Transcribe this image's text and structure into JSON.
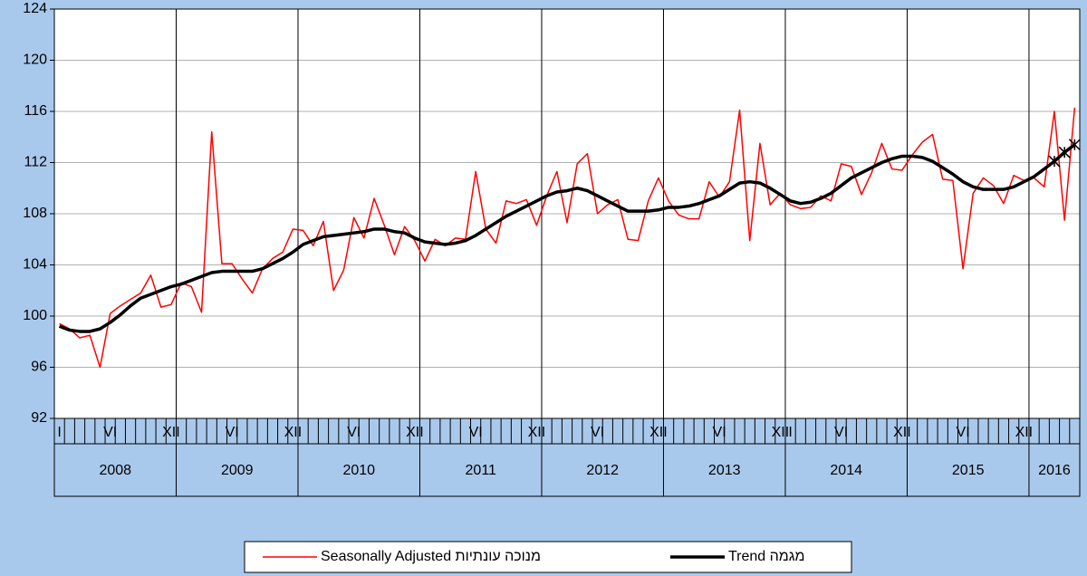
{
  "chart_data": {
    "type": "line",
    "categories": [
      "I",
      null,
      null,
      null,
      null,
      "VI",
      null,
      null,
      null,
      null,
      null,
      "XII",
      null,
      null,
      null,
      null,
      null,
      "VI",
      null,
      null,
      null,
      null,
      null,
      "XII",
      null,
      null,
      null,
      null,
      null,
      "VI",
      null,
      null,
      null,
      null,
      null,
      "XII",
      null,
      null,
      null,
      null,
      null,
      "VI",
      null,
      null,
      null,
      null,
      null,
      "XII",
      null,
      null,
      null,
      null,
      null,
      "VI",
      null,
      null,
      null,
      null,
      null,
      "XII",
      null,
      null,
      null,
      null,
      null,
      "VI",
      null,
      null,
      null,
      null,
      null,
      "XII",
      "I",
      null,
      null,
      null,
      null,
      "VI",
      null,
      null,
      null,
      null,
      null,
      "XII",
      null,
      null,
      null,
      null,
      null,
      "VI",
      null,
      null,
      null,
      null,
      null,
      "XII",
      null,
      null,
      null,
      null,
      null
    ],
    "years": [
      "2008",
      "2009",
      "2010",
      "2011",
      "2012",
      "2013",
      "2014",
      "2015",
      "2016"
    ],
    "series": [
      {
        "name": "Seasonally Adjusted מנוכה עונתיות",
        "color": "#ff0000",
        "width": 1.5,
        "values": [
          99.4,
          99.0,
          98.3,
          98.5,
          96.0,
          100.2,
          100.8,
          101.3,
          101.8,
          103.2,
          100.7,
          100.9,
          102.6,
          102.3,
          100.3,
          114.4,
          104.1,
          104.1,
          102.9,
          101.8,
          103.7,
          104.5,
          105.0,
          106.8,
          106.7,
          105.5,
          107.4,
          102.0,
          103.6,
          107.7,
          106.1,
          109.2,
          107.1,
          104.8,
          107.0,
          105.9,
          104.3,
          106.0,
          105.5,
          106.1,
          106.0,
          111.3,
          106.8,
          105.7,
          109.0,
          108.8,
          109.1,
          107.1,
          109.4,
          111.3,
          107.3,
          111.9,
          112.7,
          108.0,
          108.7,
          109.1,
          106.0,
          105.9,
          109.0,
          110.8,
          109.0,
          107.9,
          107.6,
          107.6,
          110.5,
          109.3,
          110.5,
          116.1,
          105.9,
          113.5,
          108.7,
          109.6,
          108.7,
          108.4,
          108.5,
          109.4,
          109.0,
          111.9,
          111.7,
          109.5,
          111.2,
          113.5,
          111.5,
          111.4,
          112.6,
          113.6,
          114.2,
          110.7,
          110.6,
          103.7,
          109.6,
          110.8,
          110.2,
          108.8,
          111.0,
          110.6,
          110.8,
          110.1,
          116.0,
          107.5,
          116.3
        ]
      },
      {
        "name": "Trend מגמה",
        "color": "#000000",
        "width": 3.5,
        "star_last_points": 3,
        "values": [
          99.2,
          98.9,
          98.8,
          98.8,
          99.0,
          99.5,
          100.1,
          100.8,
          101.4,
          101.7,
          102.0,
          102.3,
          102.5,
          102.8,
          103.1,
          103.4,
          103.5,
          103.5,
          103.5,
          103.5,
          103.7,
          104.1,
          104.5,
          105.0,
          105.6,
          105.9,
          106.2,
          106.3,
          106.4,
          106.5,
          106.6,
          106.8,
          106.8,
          106.6,
          106.5,
          106.1,
          105.8,
          105.7,
          105.6,
          105.7,
          105.9,
          106.3,
          106.8,
          107.3,
          107.8,
          108.2,
          108.6,
          109.0,
          109.4,
          109.7,
          109.8,
          110.0,
          109.8,
          109.4,
          109.0,
          108.6,
          108.2,
          108.2,
          108.2,
          108.3,
          108.5,
          108.5,
          108.6,
          108.8,
          109.1,
          109.4,
          109.9,
          110.4,
          110.5,
          110.4,
          110.0,
          109.5,
          109.0,
          108.8,
          108.9,
          109.2,
          109.6,
          110.2,
          110.8,
          111.2,
          111.6,
          112.0,
          112.3,
          112.5,
          112.5,
          112.4,
          112.1,
          111.6,
          111.1,
          110.5,
          110.1,
          109.9,
          109.9,
          109.9,
          110.1,
          110.5,
          110.9,
          111.5,
          112.1,
          112.8,
          113.4
        ]
      }
    ],
    "ylim": [
      92,
      124
    ],
    "yticks": [
      92,
      96,
      100,
      104,
      108,
      112,
      116,
      120,
      124
    ],
    "grid": true
  }
}
